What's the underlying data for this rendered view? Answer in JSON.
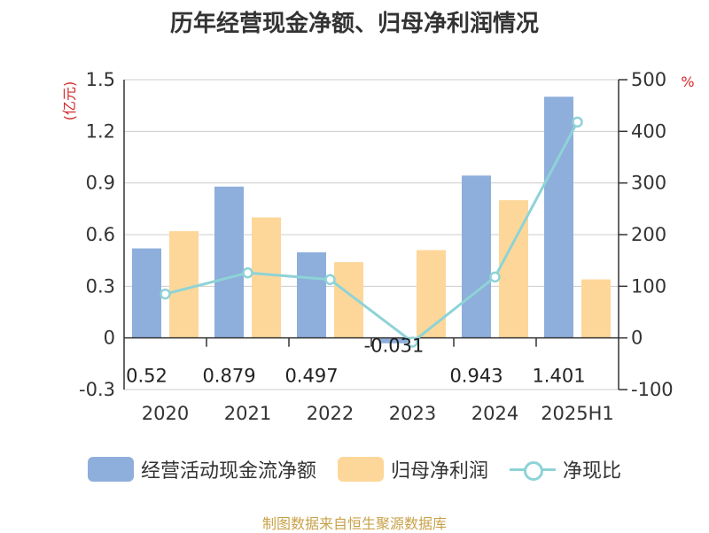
{
  "title": "历年经营现金净额、归母净利润情况",
  "source": "制图数据来自恒生聚源数据库",
  "chart_data": {
    "type": "bar",
    "categories": [
      "2020",
      "2021",
      "2022",
      "2023",
      "2024",
      "2025H1"
    ],
    "left_axis": {
      "unit_label": "(亿元)",
      "ylim": [
        -0.3,
        1.5
      ],
      "ticks": [
        "1.5",
        "1.2",
        "0.9",
        "0.6",
        "0.3",
        "0",
        "-0.3"
      ]
    },
    "right_axis": {
      "unit_label": "%",
      "ylim": [
        -100,
        500
      ],
      "ticks": [
        "500",
        "400",
        "300",
        "200",
        "100",
        "0",
        "-100"
      ]
    },
    "series": [
      {
        "name": "经营活动现金流净额",
        "axis": "left",
        "color": "#8eaedb",
        "values": [
          0.52,
          0.879,
          0.497,
          -0.031,
          0.943,
          1.401
        ],
        "labels": [
          "0.52",
          "0.879",
          "0.497",
          "-0.031",
          "0.943",
          "1.401"
        ]
      },
      {
        "name": "归母净利润",
        "axis": "left",
        "color": "#fdd799",
        "values": [
          0.62,
          0.7,
          0.44,
          0.51,
          0.8,
          0.34
        ]
      },
      {
        "name": "净现比",
        "axis": "right",
        "type": "line",
        "color": "#8dd3d7",
        "values": [
          85,
          126,
          113,
          -8,
          118,
          418
        ]
      }
    ],
    "grid": true,
    "legend_position": "bottom"
  }
}
